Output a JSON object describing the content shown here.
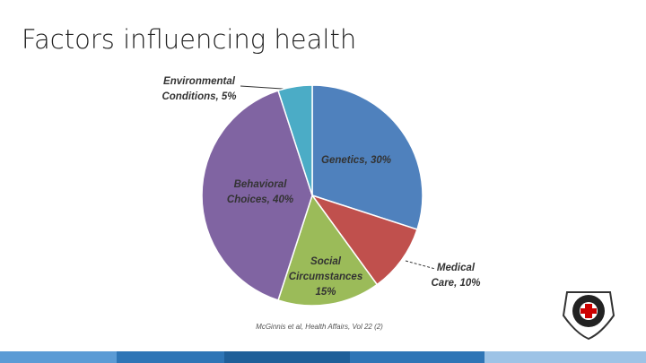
{
  "title": "Factors influencing health",
  "chart_data": {
    "type": "pie",
    "categories": [
      "Genetics, 30%",
      "Medical Care, 10%",
      "Social Circumstances 15%",
      "Behavioral Choices, 40%",
      "Environmental Conditions, 5%"
    ],
    "values": [
      30,
      10,
      15,
      40,
      5
    ],
    "colors": [
      "#4f81bd",
      "#c0504d",
      "#9bbb59",
      "#8064a2",
      "#4bacc6"
    ],
    "source": "McGinnis et al, Health Affairs, Vol 22 (2)"
  }
}
